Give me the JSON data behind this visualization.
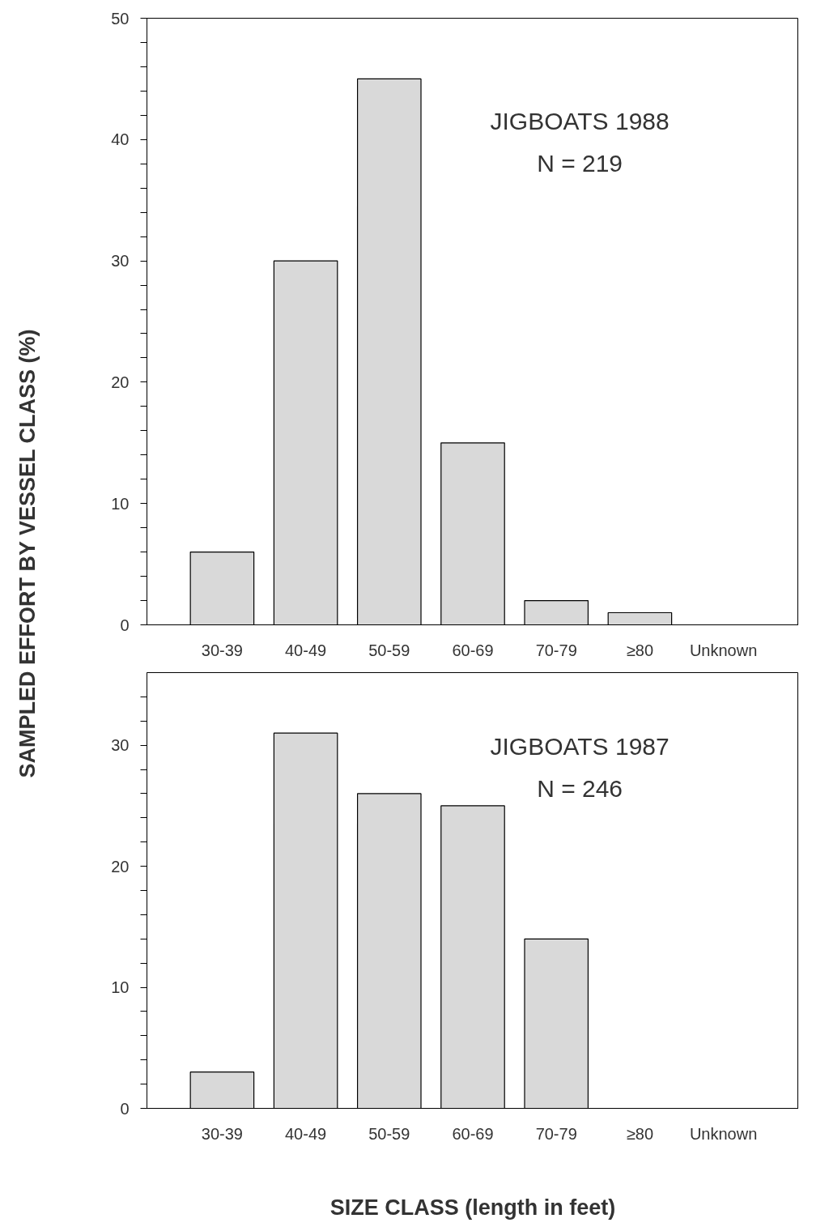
{
  "chart_data": [
    {
      "type": "bar",
      "ylabel": "SAMPLED EFFORT BY VESSEL CLASS (%)",
      "categories": [
        "30-39",
        "40-49",
        "50-59",
        "60-69",
        "70-79",
        "≥80",
        "Unknown"
      ],
      "values": [
        6,
        30,
        45,
        15,
        2,
        1,
        null
      ],
      "color": "#d9d9d9",
      "ylim": [
        0,
        50
      ],
      "yticks": [
        0,
        {
          "value": 2,
          "label": null
        },
        {
          "value": 4,
          "label": null
        },
        {
          "value": 6,
          "label": null
        },
        {
          "value": 8,
          "label": null
        },
        10,
        {
          "value": 12,
          "label": null
        },
        {
          "value": 14,
          "label": null
        },
        {
          "value": 16,
          "label": null
        },
        {
          "value": 18,
          "label": null
        },
        20,
        {
          "value": 22,
          "label": null
        },
        {
          "value": 24,
          "label": null
        },
        {
          "value": 26,
          "label": null
        },
        {
          "value": 28,
          "label": null
        },
        30,
        {
          "value": 32,
          "label": null
        },
        {
          "value": 34,
          "label": null
        },
        {
          "value": 36,
          "label": null
        },
        {
          "value": 38,
          "label": null
        },
        40,
        {
          "value": 42,
          "label": null
        },
        {
          "value": 44,
          "label": null
        },
        {
          "value": 46,
          "label": null
        },
        {
          "value": 48,
          "label": null
        },
        50
      ],
      "annotations": [
        "JIGBOATS 1988",
        "N = 219"
      ],
      "grid": false
    },
    {
      "type": "bar",
      "xlabel": "SIZE CLASS (length in feet)",
      "categories": [
        "30-39",
        "40-49",
        "50-59",
        "60-69",
        "70-79",
        "≥80",
        "Unknown"
      ],
      "values": [
        3,
        31,
        26,
        25,
        14,
        null,
        null
      ],
      "color": "#d9d9d9",
      "ylim": [
        0,
        36
      ],
      "yticks": [
        0,
        {
          "value": 2,
          "label": null
        },
        {
          "value": 4,
          "label": null
        },
        {
          "value": 6,
          "label": null
        },
        {
          "value": 8,
          "label": null
        },
        10,
        {
          "value": 12,
          "label": null
        },
        {
          "value": 14,
          "label": null
        },
        {
          "value": 16,
          "label": null
        },
        {
          "value": 18,
          "label": null
        },
        20,
        {
          "value": 22,
          "label": null
        },
        {
          "value": 24,
          "label": null
        },
        {
          "value": 26,
          "label": null
        },
        {
          "value": 28,
          "label": null
        },
        30,
        {
          "value": 32,
          "label": null
        },
        {
          "value": 34,
          "label": null
        }
      ],
      "annotations": [
        "JIGBOATS 1987",
        "N = 246"
      ],
      "grid": false
    }
  ]
}
